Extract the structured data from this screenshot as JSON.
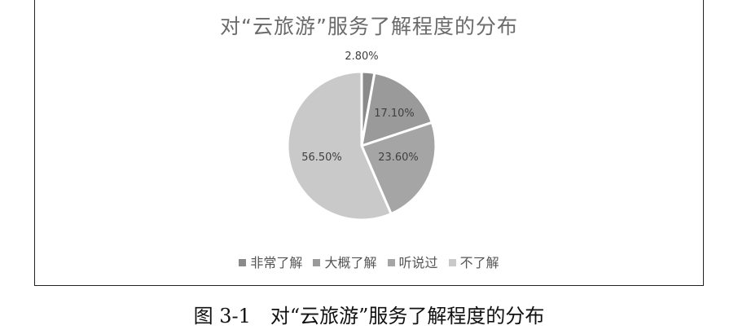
{
  "chart_data": {
    "type": "pie",
    "title": "对“云旅游”服务了解程度的分布",
    "categories": [
      "非常了解",
      "大概了解",
      "听说过",
      "不了解"
    ],
    "values": [
      2.8,
      17.1,
      23.6,
      56.5
    ],
    "labels": [
      "2.80%",
      "17.10%",
      "23.60%",
      "56.50%"
    ],
    "colors": [
      "#8a8a8a",
      "#9a9a9a",
      "#a5a5a5",
      "#c9c9c9"
    ],
    "legend_position": "bottom",
    "start": "top",
    "direction": "clockwise"
  },
  "caption": "图 3-1　对“云旅游”服务了解程度的分布"
}
